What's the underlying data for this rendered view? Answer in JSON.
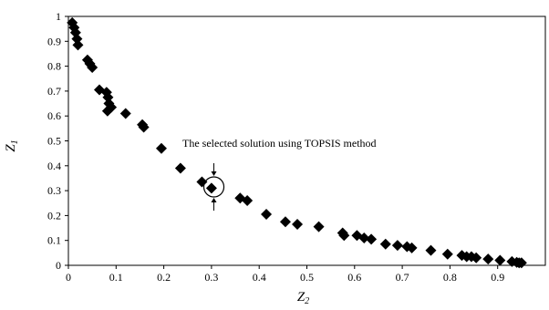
{
  "chart_data": {
    "type": "scatter",
    "xlabel_main": "Z",
    "xlabel_sub": "2",
    "ylabel_main": "Z",
    "ylabel_sub": "1",
    "xlim": [
      0,
      1
    ],
    "ylim": [
      0,
      1
    ],
    "x_ticks": [
      0,
      0.1,
      0.2,
      0.3,
      0.4,
      0.5,
      0.6,
      0.7,
      0.8,
      0.9
    ],
    "x_tick_labels": [
      "0",
      "0.1",
      "0.2",
      "0.3",
      "0.4",
      "0.5",
      "0.6",
      "0.7",
      "0.8",
      "0.9"
    ],
    "y_ticks": [
      0,
      0.1,
      0.2,
      0.3,
      0.4,
      0.5,
      0.6,
      0.7,
      0.8,
      0.9,
      1
    ],
    "y_tick_labels": [
      "0",
      "0.1",
      "0.2",
      "0.3",
      "0.4",
      "0.5",
      "0.6",
      "0.7",
      "0.8",
      "0.9",
      "1"
    ],
    "grid": false,
    "marker": "diamond",
    "marker_color": "#000000",
    "points": [
      {
        "x": 0.008,
        "y": 0.975
      },
      {
        "x": 0.012,
        "y": 0.955
      },
      {
        "x": 0.015,
        "y": 0.935
      },
      {
        "x": 0.018,
        "y": 0.91
      },
      {
        "x": 0.02,
        "y": 0.885
      },
      {
        "x": 0.04,
        "y": 0.825
      },
      {
        "x": 0.045,
        "y": 0.81
      },
      {
        "x": 0.05,
        "y": 0.795
      },
      {
        "x": 0.065,
        "y": 0.705
      },
      {
        "x": 0.08,
        "y": 0.695
      },
      {
        "x": 0.083,
        "y": 0.675
      },
      {
        "x": 0.085,
        "y": 0.65
      },
      {
        "x": 0.082,
        "y": 0.62
      },
      {
        "x": 0.09,
        "y": 0.635
      },
      {
        "x": 0.12,
        "y": 0.61
      },
      {
        "x": 0.155,
        "y": 0.565
      },
      {
        "x": 0.158,
        "y": 0.555
      },
      {
        "x": 0.195,
        "y": 0.47
      },
      {
        "x": 0.235,
        "y": 0.39
      },
      {
        "x": 0.28,
        "y": 0.335
      },
      {
        "x": 0.3,
        "y": 0.31
      },
      {
        "x": 0.36,
        "y": 0.27
      },
      {
        "x": 0.375,
        "y": 0.26
      },
      {
        "x": 0.415,
        "y": 0.205
      },
      {
        "x": 0.455,
        "y": 0.175
      },
      {
        "x": 0.48,
        "y": 0.165
      },
      {
        "x": 0.525,
        "y": 0.155
      },
      {
        "x": 0.575,
        "y": 0.13
      },
      {
        "x": 0.578,
        "y": 0.12
      },
      {
        "x": 0.605,
        "y": 0.12
      },
      {
        "x": 0.62,
        "y": 0.11
      },
      {
        "x": 0.635,
        "y": 0.105
      },
      {
        "x": 0.665,
        "y": 0.085
      },
      {
        "x": 0.69,
        "y": 0.08
      },
      {
        "x": 0.71,
        "y": 0.075
      },
      {
        "x": 0.72,
        "y": 0.07
      },
      {
        "x": 0.76,
        "y": 0.06
      },
      {
        "x": 0.795,
        "y": 0.045
      },
      {
        "x": 0.825,
        "y": 0.04
      },
      {
        "x": 0.835,
        "y": 0.035
      },
      {
        "x": 0.845,
        "y": 0.035
      },
      {
        "x": 0.855,
        "y": 0.03
      },
      {
        "x": 0.88,
        "y": 0.025
      },
      {
        "x": 0.905,
        "y": 0.02
      },
      {
        "x": 0.93,
        "y": 0.015
      },
      {
        "x": 0.94,
        "y": 0.012
      },
      {
        "x": 0.945,
        "y": 0.01
      },
      {
        "x": 0.95,
        "y": 0.01
      }
    ],
    "annotation": {
      "text": "The selected solution using TOPSIS method",
      "x": 0.305,
      "y": 0.315
    }
  }
}
